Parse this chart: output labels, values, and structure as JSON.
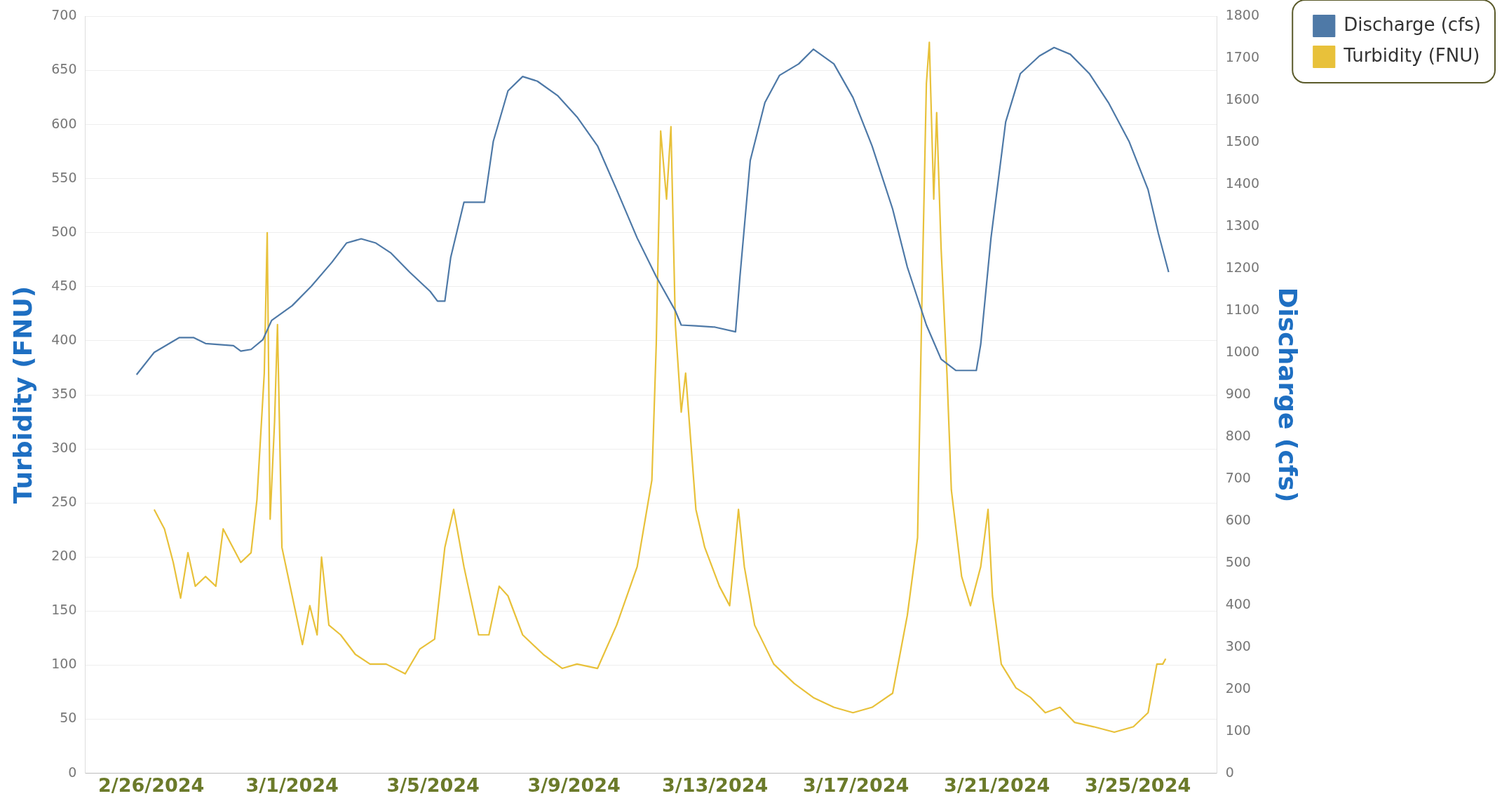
{
  "chart_data": {
    "type": "line",
    "ylabel": "Turbidity (FNU)",
    "y2label": "Discharge (cfs)",
    "xlim": [
      "2024-02-24T03:00",
      "2024-03-27T06:00"
    ],
    "xticks": [
      {
        "value": "2024-02-26",
        "label": "2/26/2024"
      },
      {
        "value": "2024-03-01",
        "label": "3/1/2024"
      },
      {
        "value": "2024-03-05",
        "label": "3/5/2024"
      },
      {
        "value": "2024-03-09",
        "label": "3/9/2024"
      },
      {
        "value": "2024-03-13",
        "label": "3/13/2024"
      },
      {
        "value": "2024-03-17",
        "label": "3/17/2024"
      },
      {
        "value": "2024-03-21",
        "label": "3/21/2024"
      },
      {
        "value": "2024-03-25",
        "label": "3/25/2024"
      }
    ],
    "ylim": [
      0,
      700
    ],
    "yticks": [
      0,
      50,
      100,
      150,
      200,
      250,
      300,
      350,
      400,
      450,
      500,
      550,
      600,
      650,
      700
    ],
    "y2lim": [
      0,
      1800
    ],
    "y2ticks": [
      0,
      100,
      200,
      300,
      400,
      500,
      600,
      700,
      800,
      900,
      1000,
      1100,
      1200,
      1300,
      1400,
      1500,
      1600,
      1700,
      1800
    ],
    "grid": "y",
    "legend": "top right",
    "marker": "none",
    "line_style": "solid",
    "series": [
      {
        "name": "Discharge (cfs)",
        "color": "#4e79a7",
        "axis": "y2",
        "x": [
          "2024-02-25T14:00",
          "2024-02-26T02:00",
          "2024-02-26T19:00",
          "2024-02-27T05:00",
          "2024-02-27T13:00",
          "2024-02-28T08:00",
          "2024-02-28T13:00",
          "2024-02-28T20:00",
          "2024-02-29T04:00",
          "2024-02-29T10:00",
          "2024-03-01T00:00",
          "2024-03-01T13:00",
          "2024-03-02T03:00",
          "2024-03-02T13:00",
          "2024-03-02T23:00",
          "2024-03-03T09:00",
          "2024-03-03T19:00",
          "2024-03-04T08:00",
          "2024-03-04T22:00",
          "2024-03-05T03:00",
          "2024-03-05T08:00",
          "2024-03-05T12:00",
          "2024-03-05T21:00",
          "2024-03-06T11:00",
          "2024-03-06T17:00",
          "2024-03-07T03:00",
          "2024-03-07T13:00",
          "2024-03-07T23:00",
          "2024-03-08T13:00",
          "2024-03-09T02:00",
          "2024-03-09T16:00",
          "2024-03-10T05:00",
          "2024-03-10T19:00",
          "2024-03-11T08:00",
          "2024-03-11T21:00",
          "2024-03-12T01:00",
          "2024-03-12T11:00",
          "2024-03-13T00:00",
          "2024-03-13T14:00",
          "2024-03-13T17:00",
          "2024-03-14T00:00",
          "2024-03-14T10:00",
          "2024-03-14T20:00",
          "2024-03-15T09:00",
          "2024-03-15T19:00",
          "2024-03-16T09:00",
          "2024-03-16T22:00",
          "2024-03-17T11:00",
          "2024-03-18T01:00",
          "2024-03-18T11:00",
          "2024-03-19T00:00",
          "2024-03-19T10:00",
          "2024-03-19T20:00",
          "2024-03-20T10:00",
          "2024-03-20T13:00",
          "2024-03-20T20:00",
          "2024-03-21T06:00",
          "2024-03-21T16:00",
          "2024-03-22T05:00",
          "2024-03-22T15:00",
          "2024-03-23T02:00",
          "2024-03-23T15:00",
          "2024-03-24T04:00",
          "2024-03-24T18:00",
          "2024-03-25T07:00",
          "2024-03-25T14:00",
          "2024-03-25T21:00"
        ],
        "values": [
          948,
          1001,
          1036,
          1036,
          1022,
          1017,
          1004,
          1008,
          1031,
          1077,
          1112,
          1158,
          1215,
          1261,
          1271,
          1261,
          1238,
          1192,
          1146,
          1123,
          1123,
          1227,
          1358,
          1358,
          1503,
          1623,
          1657,
          1646,
          1611,
          1561,
          1492,
          1388,
          1273,
          1181,
          1100,
          1066,
          1064,
          1061,
          1050,
          1181,
          1457,
          1595,
          1660,
          1687,
          1722,
          1687,
          1607,
          1492,
          1342,
          1204,
          1066,
          985,
          958,
          958,
          1020,
          1273,
          1549,
          1664,
          1706,
          1726,
          1710,
          1664,
          1595,
          1503,
          1388,
          1284,
          1192
        ]
      },
      {
        "name": "Turbidity (FNU)",
        "color": "#e8c13a",
        "x": [
          "2024-02-26T02:00",
          "2024-02-26T09:00",
          "2024-02-26T15:00",
          "2024-02-26T20:00",
          "2024-02-27T01:00",
          "2024-02-27T06:00",
          "2024-02-27T13:00",
          "2024-02-27T20:00",
          "2024-02-28T01:00",
          "2024-02-28T06:00",
          "2024-02-28T13:00",
          "2024-02-28T20:00",
          "2024-02-29T00:00",
          "2024-02-29T05:00",
          "2024-02-29T07:00",
          "2024-02-29T09:00",
          "2024-02-29T12:00",
          "2024-02-29T14:00",
          "2024-02-29T17:00",
          "2024-03-01T00:00",
          "2024-03-01T07:00",
          "2024-03-01T12:00",
          "2024-03-01T17:00",
          "2024-03-01T20:00",
          "2024-03-02T01:00",
          "2024-03-02T09:00",
          "2024-03-02T19:00",
          "2024-03-03T05:00",
          "2024-03-03T16:00",
          "2024-03-04T05:00",
          "2024-03-04T15:00",
          "2024-03-05T01:00",
          "2024-03-05T08:00",
          "2024-03-05T14:00",
          "2024-03-05T21:00",
          "2024-03-06T07:00",
          "2024-03-06T14:00",
          "2024-03-06T21:00",
          "2024-03-07T03:00",
          "2024-03-07T13:00",
          "2024-03-08T03:00",
          "2024-03-08T16:00",
          "2024-03-09T02:00",
          "2024-03-09T16:00",
          "2024-03-10T05:00",
          "2024-03-10T19:00",
          "2024-03-11T05:00",
          "2024-03-11T08:00",
          "2024-03-11T11:00",
          "2024-03-11T15:00",
          "2024-03-11T18:00",
          "2024-03-11T21:00",
          "2024-03-12T01:00",
          "2024-03-12T04:00",
          "2024-03-12T07:00",
          "2024-03-12T11:00",
          "2024-03-12T17:00",
          "2024-03-13T03:00",
          "2024-03-13T10:00",
          "2024-03-13T16:00",
          "2024-03-13T20:00",
          "2024-03-14T03:00",
          "2024-03-14T16:00",
          "2024-03-15T06:00",
          "2024-03-15T19:00",
          "2024-03-16T09:00",
          "2024-03-16T22:00",
          "2024-03-17T11:00",
          "2024-03-18T01:00",
          "2024-03-18T11:00",
          "2024-03-18T18:00",
          "2024-03-18T21:00",
          "2024-03-19T00:00",
          "2024-03-19T02:00",
          "2024-03-19T05:00",
          "2024-03-19T07:00",
          "2024-03-19T10:00",
          "2024-03-19T14:00",
          "2024-03-19T17:00",
          "2024-03-20T00:00",
          "2024-03-20T06:00",
          "2024-03-20T13:00",
          "2024-03-20T18:00",
          "2024-03-20T21:00",
          "2024-03-21T03:00",
          "2024-03-21T13:00",
          "2024-03-21T23:00",
          "2024-03-22T09:00",
          "2024-03-22T19:00",
          "2024-03-23T05:00",
          "2024-03-23T18:00",
          "2024-03-24T08:00",
          "2024-03-24T21:00",
          "2024-03-25T07:00",
          "2024-03-25T13:00",
          "2024-03-25T17:00",
          "2024-03-25T19:00"
        ],
        "values": [
          244,
          226,
          195,
          162,
          204,
          173,
          182,
          173,
          226,
          213,
          195,
          204,
          253,
          370,
          500,
          235,
          325,
          415,
          209,
          164,
          119,
          155,
          128,
          200,
          137,
          128,
          110,
          101,
          101,
          92,
          115,
          124,
          209,
          244,
          191,
          128,
          128,
          173,
          164,
          128,
          110,
          97,
          101,
          97,
          137,
          191,
          271,
          397,
          594,
          531,
          598,
          415,
          334,
          370,
          316,
          244,
          209,
          173,
          155,
          244,
          191,
          137,
          101,
          83,
          70,
          61,
          56,
          61,
          74,
          146,
          218,
          441,
          638,
          676,
          531,
          611,
          486,
          370,
          262,
          182,
          155,
          191,
          244,
          164,
          101,
          79,
          70,
          56,
          61,
          47,
          43,
          38,
          43,
          56,
          101,
          101,
          106
        ]
      }
    ]
  }
}
